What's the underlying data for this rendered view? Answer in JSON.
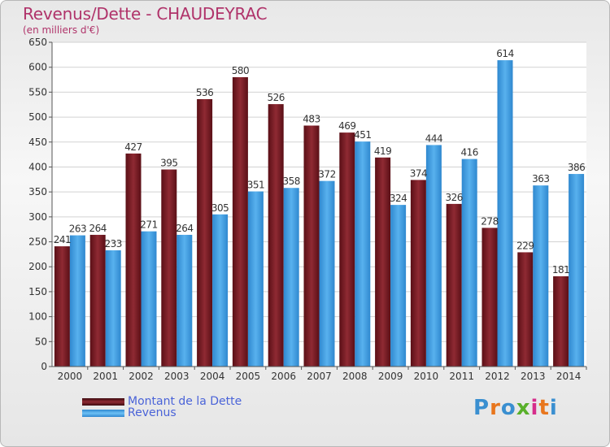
{
  "title": "Revenus/Dette - CHAUDEYRAC",
  "subtitle": "(en milliers d'€)",
  "logo": {
    "text": "Proxiti",
    "letters": [
      "P",
      "r",
      "o",
      "x",
      "i",
      "t",
      "i"
    ],
    "colors": [
      "#3a8fd0",
      "#e8761d",
      "#3a8fd0",
      "#59b02b",
      "#d62d8b",
      "#e8761d",
      "#3a8fd0"
    ]
  },
  "colors": {
    "dette": "#7a1c24",
    "revenus": "#3b9be0",
    "title": "#b0336a",
    "legend_text": "#4a63d8"
  },
  "chart_data": {
    "type": "bar",
    "categories": [
      "2000",
      "2001",
      "2002",
      "2003",
      "2004",
      "2005",
      "2006",
      "2007",
      "2008",
      "2009",
      "2010",
      "2011",
      "2012",
      "2013",
      "2014"
    ],
    "series": [
      {
        "name": "Montant de la Dette",
        "values": [
          241,
          264,
          427,
          395,
          536,
          580,
          526,
          483,
          469,
          419,
          374,
          326,
          278,
          229,
          181
        ]
      },
      {
        "name": "Revenus",
        "values": [
          263,
          233,
          271,
          264,
          305,
          351,
          358,
          372,
          451,
          324,
          444,
          416,
          614,
          363,
          386
        ]
      }
    ],
    "yticks": [
      0,
      50,
      100,
      150,
      200,
      250,
      300,
      350,
      400,
      450,
      500,
      550,
      600,
      650
    ],
    "ylim": [
      0,
      650
    ],
    "grid": true,
    "legend_position": "bottom-left"
  }
}
